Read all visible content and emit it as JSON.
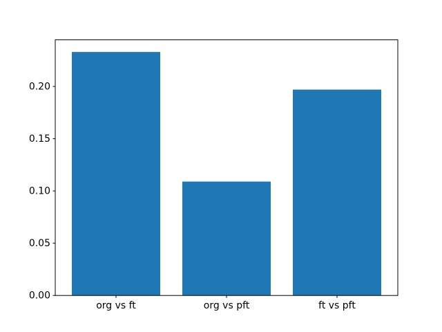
{
  "chart_data": {
    "type": "bar",
    "title": "",
    "xlabel": "",
    "ylabel": "",
    "categories": [
      "org vs ft",
      "org vs pft",
      "ft vs pft"
    ],
    "values": [
      0.233,
      0.109,
      0.197
    ],
    "bar_color": "#1f77b4",
    "yticks": [
      0.0,
      0.05,
      0.1,
      0.15,
      0.2
    ],
    "ytick_labels": [
      "0.00",
      "0.05",
      "0.10",
      "0.15",
      "0.20"
    ],
    "ylim": [
      0,
      0.2446
    ],
    "grid": false,
    "legend": null,
    "background": "#ffffff",
    "spine_color": "#000000",
    "tick_color": "#000000"
  }
}
